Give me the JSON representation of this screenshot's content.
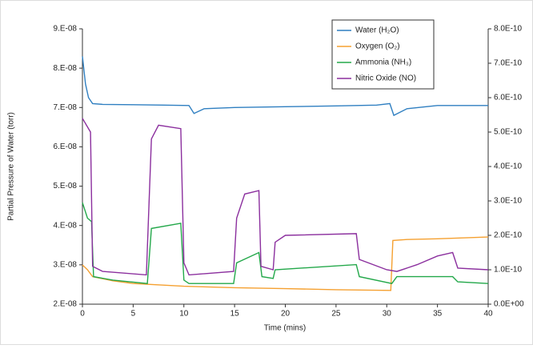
{
  "chart_data": {
    "type": "line",
    "y_label": "Partial Pressure of Water (torr)",
    "x_label": "Time (mins)",
    "xlim": [
      0,
      40
    ],
    "xticks": [
      0,
      5,
      10,
      15,
      20,
      25,
      30,
      35,
      40
    ],
    "ylim": [
      2e-08,
      9e-08
    ],
    "yticks": [
      {
        "value": 2e-08,
        "label": "2.E-08"
      },
      {
        "value": 3e-08,
        "label": "3.E-08"
      },
      {
        "value": 4e-08,
        "label": "4.E-08"
      },
      {
        "value": 5e-08,
        "label": "5.E-08"
      },
      {
        "value": 6e-08,
        "label": "6.E-08"
      },
      {
        "value": 7e-08,
        "label": "7.E-08"
      },
      {
        "value": 8e-08,
        "label": "8.E-08"
      },
      {
        "value": 9e-08,
        "label": "9.E-08"
      }
    ],
    "y2lim": [
      0,
      8e-10
    ],
    "y2ticks": [
      {
        "value": 0,
        "label": "0.0E+00"
      },
      {
        "value": 1e-10,
        "label": "1.0E-10"
      },
      {
        "value": 2e-10,
        "label": "2.0E-10"
      },
      {
        "value": 3e-10,
        "label": "3.0E-10"
      },
      {
        "value": 4e-10,
        "label": "4.0E-10"
      },
      {
        "value": 5e-10,
        "label": "5.0E-10"
      },
      {
        "value": 6e-10,
        "label": "6.0E-10"
      },
      {
        "value": 7e-10,
        "label": "7.0E-10"
      },
      {
        "value": 8e-10,
        "label": "8.0E-10"
      }
    ],
    "grid": false,
    "legend": "upper right",
    "series": [
      {
        "name": "Water (H₂O)",
        "color": "#2f7fc1",
        "axis": "y",
        "x": [
          0,
          0.3,
          0.6,
          1,
          2,
          5,
          8,
          10.5,
          11,
          12,
          15,
          20,
          25,
          29,
          30.3,
          30.7,
          32,
          35,
          40
        ],
        "values": [
          8.3e-08,
          7.6e-08,
          7.25e-08,
          7.1e-08,
          7.08e-08,
          7.07e-08,
          7.06e-08,
          7.05e-08,
          6.85e-08,
          6.97e-08,
          7e-08,
          7.02e-08,
          7.04e-08,
          7.06e-08,
          7.1e-08,
          6.8e-08,
          6.97e-08,
          7.05e-08,
          7.05e-08
        ]
      },
      {
        "name": "Oxygen (O₂)",
        "color": "#f5a030",
        "axis": "y2",
        "x": [
          0,
          0.5,
          1,
          3,
          5,
          10,
          15,
          20,
          25,
          30.4,
          30.6,
          32,
          35,
          40
        ],
        "values": [
          1.14e-10,
          1e-10,
          8e-11,
          6.8e-11,
          6e-11,
          5.2e-11,
          4.8e-11,
          4.5e-11,
          4.2e-11,
          4e-11,
          1.85e-10,
          1.88e-10,
          1.9e-10,
          1.95e-10
        ]
      },
      {
        "name": "Ammonia (NH₃)",
        "color": "#23a84a",
        "axis": "y2",
        "x": [
          0,
          0.5,
          0.9,
          1.1,
          3,
          6.4,
          6.8,
          9.7,
          10,
          10.5,
          14.9,
          15.2,
          17.4,
          17.7,
          18.8,
          19,
          27,
          27.3,
          30.5,
          31,
          36.5,
          37,
          40
        ],
        "values": [
          2.95e-10,
          2.5e-10,
          2.4e-10,
          8e-11,
          7e-11,
          6e-11,
          2.2e-10,
          2.35e-10,
          7e-11,
          6e-11,
          6e-11,
          1.2e-10,
          1.5e-10,
          8e-11,
          7.5e-11,
          1e-10,
          1.15e-10,
          8e-11,
          6e-11,
          8e-11,
          8e-11,
          6.5e-11,
          6e-11
        ]
      },
      {
        "name": "Nitric Oxide (NO)",
        "color": "#8b2f9e",
        "axis": "y2",
        "x": [
          0,
          0.8,
          1.0,
          2,
          6.3,
          6.8,
          7.5,
          9.7,
          10,
          10.5,
          14.9,
          15.2,
          16,
          17.4,
          17.6,
          18.8,
          19,
          20,
          27,
          27.3,
          30,
          31,
          33,
          35,
          36.5,
          37,
          40
        ],
        "values": [
          5.4e-10,
          5e-10,
          1.1e-10,
          9.5e-11,
          8.5e-11,
          4.8e-10,
          5.2e-10,
          5.1e-10,
          1.2e-10,
          8.5e-11,
          9.5e-11,
          2.5e-10,
          3.2e-10,
          3.3e-10,
          1.1e-10,
          1e-10,
          1.8e-10,
          2e-10,
          2.05e-10,
          1.3e-10,
          1e-10,
          9.5e-11,
          1.15e-10,
          1.4e-10,
          1.5e-10,
          1.05e-10,
          1e-10
        ]
      }
    ]
  }
}
